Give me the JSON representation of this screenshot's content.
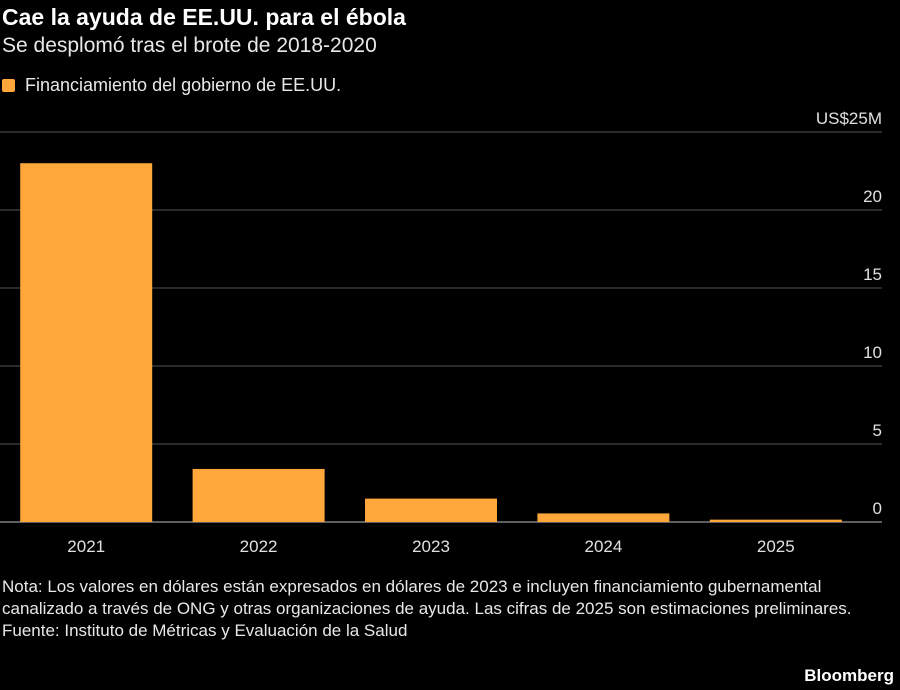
{
  "header": {
    "title": "Cae la ayuda de EE.UU. para el ébola",
    "subtitle": "Se desplomó tras el brote de 2018-2020"
  },
  "legend": {
    "label": "Financiamiento del gobierno de EE.UU.",
    "color": "#ffa73a"
  },
  "chart_data": {
    "type": "bar",
    "categories": [
      "2021",
      "2022",
      "2023",
      "2024",
      "2025"
    ],
    "series": [
      {
        "name": "Financiamiento del gobierno de EE.UU.",
        "values": [
          23.0,
          3.4,
          1.5,
          0.55,
          0.15
        ]
      }
    ],
    "y_ticks": [
      0,
      5,
      10,
      15,
      20,
      25
    ],
    "y_tick_labels": [
      "0",
      "5",
      "10",
      "15",
      "20",
      "US$25M"
    ],
    "ylim": [
      0,
      25
    ],
    "grid": true,
    "y_axis_side": "right",
    "legend_position": "top-left",
    "bar_color": "#ffa73a",
    "grid_color": "#555555"
  },
  "footer": {
    "note": "Nota: Los valores en dólares están expresados en dólares de 2023 e incluyen financiamiento gubernamental canalizado a través de ONG y otras organizaciones de ayuda. Las cifras de 2025 son estimaciones preliminares.",
    "source": "Fuente: Instituto de Métricas y Evaluación de la Salud",
    "brand": "Bloomberg"
  }
}
